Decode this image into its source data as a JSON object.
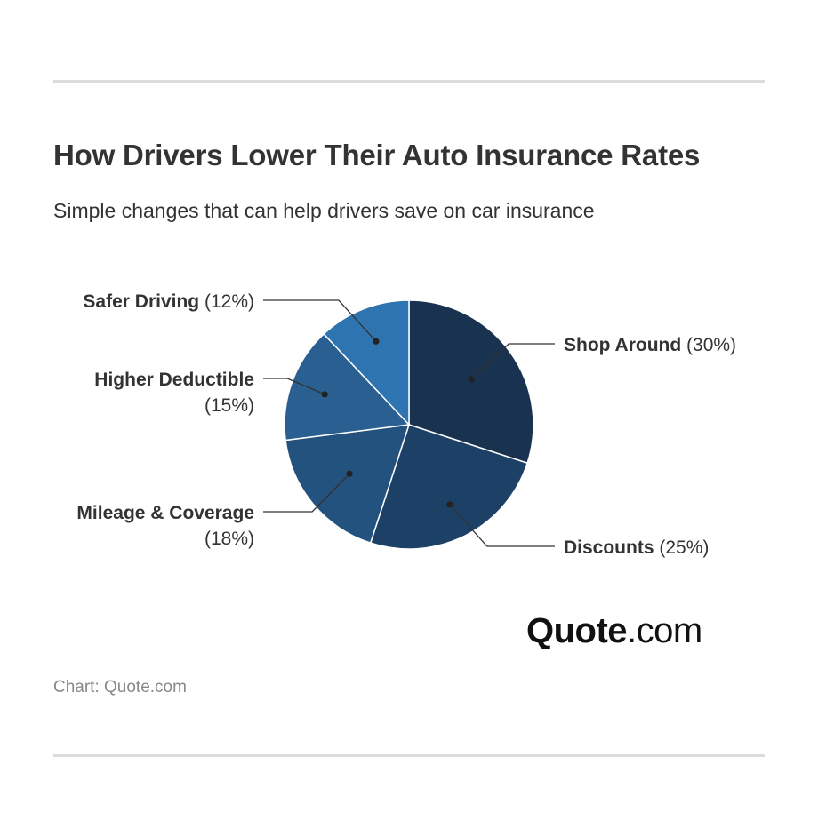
{
  "header": {
    "title": "How Drivers Lower Their Auto Insurance Rates",
    "subtitle": "Simple changes that can help drivers save on car insurance"
  },
  "chart_data": {
    "type": "pie",
    "title": "How Drivers Lower Their Auto Insurance Rates",
    "subtitle": "Simple changes that can help drivers save on car insurance",
    "slices": [
      {
        "label": "Shop Around",
        "value": 30,
        "value_label": "(30%)",
        "color": "#19324f"
      },
      {
        "label": "Discounts",
        "value": 25,
        "value_label": "(25%)",
        "color": "#1d4166"
      },
      {
        "label": "Mileage & Coverage",
        "value": 18,
        "value_label": "(18%)",
        "color": "#22527d"
      },
      {
        "label": "Higher Deductible",
        "value": 15,
        "value_label": "(15%)",
        "color": "#295f91"
      },
      {
        "label": "Safer Driving",
        "value": 12,
        "value_label": "(12%)",
        "color": "#2e74b1"
      }
    ],
    "start": "top",
    "direction": "clockwise"
  },
  "logo": {
    "brand": "Quote",
    "tld": ".com"
  },
  "footer": {
    "credit": "Chart: Quote.com"
  }
}
